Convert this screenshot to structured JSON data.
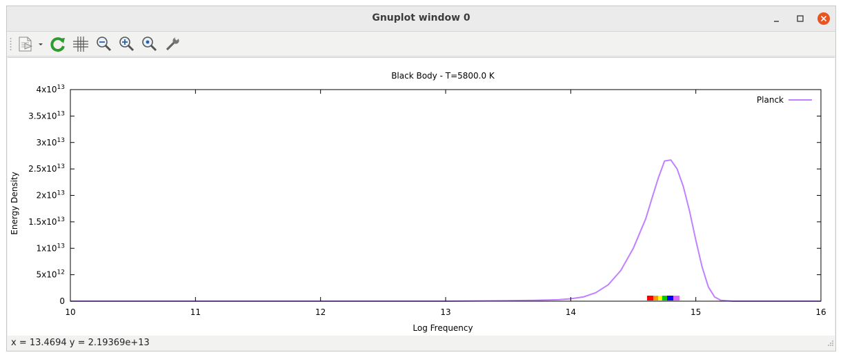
{
  "window": {
    "title": "Gnuplot window 0",
    "controls": [
      "minimize-icon",
      "maximize-icon",
      "close-icon"
    ],
    "close_color": "#e95420"
  },
  "toolbar": {
    "icons": [
      "copy-to-clipboard-icon",
      "dropdown-arrow-icon",
      "replot-icon",
      "grid-icon",
      "zoom-previous-icon",
      "zoom-next-icon",
      "unzoom-icon",
      "options-wrench-icon"
    ]
  },
  "chart_data": {
    "type": "line",
    "title": "Black Body - T=5800.0 K",
    "xlabel": "Log Frequency",
    "ylabel": "Energy Density",
    "xlim": [
      10,
      16
    ],
    "ylim": [
      0,
      40000000000000
    ],
    "x_ticks": [
      10,
      11,
      12,
      13,
      14,
      15,
      16
    ],
    "x_tick_labels": [
      "10",
      "11",
      "12",
      "13",
      "14",
      "15",
      "16"
    ],
    "y_ticks": [
      0,
      5000000000000,
      10000000000000,
      15000000000000,
      20000000000000,
      25000000000000,
      30000000000000,
      35000000000000,
      40000000000000
    ],
    "y_tick_labels": [
      {
        "base": "0",
        "exp": ""
      },
      {
        "base": "5x10",
        "exp": "12"
      },
      {
        "base": "1x10",
        "exp": "13"
      },
      {
        "base": "1.5x10",
        "exp": "13"
      },
      {
        "base": "2x10",
        "exp": "13"
      },
      {
        "base": "2.5x10",
        "exp": "13"
      },
      {
        "base": "3x10",
        "exp": "13"
      },
      {
        "base": "3.5x10",
        "exp": "13"
      },
      {
        "base": "4x10",
        "exp": "13"
      }
    ],
    "legend_position": "top-right",
    "grid": false,
    "series": [
      {
        "name": "Planck",
        "color": "#c080ff",
        "points": [
          [
            10.0,
            0
          ],
          [
            11.0,
            0
          ],
          [
            12.0,
            0
          ],
          [
            13.0,
            0
          ],
          [
            13.5,
            100000000000
          ],
          [
            13.7,
            150000000000
          ],
          [
            13.9,
            280000000000
          ],
          [
            14.0,
            450000000000
          ],
          [
            14.1,
            800000000000
          ],
          [
            14.2,
            1600000000000
          ],
          [
            14.3,
            3100000000000
          ],
          [
            14.4,
            5800000000000
          ],
          [
            14.5,
            10000000000000
          ],
          [
            14.6,
            15600000000000
          ],
          [
            14.65,
            19500000000000
          ],
          [
            14.7,
            23300000000000
          ],
          [
            14.75,
            26500000000000
          ],
          [
            14.8,
            26700000000000
          ],
          [
            14.85,
            25000000000000
          ],
          [
            14.9,
            21700000000000
          ],
          [
            14.95,
            17000000000000
          ],
          [
            15.0,
            11500000000000
          ],
          [
            15.05,
            6500000000000
          ],
          [
            15.1,
            2700000000000
          ],
          [
            15.15,
            800000000000
          ],
          [
            15.2,
            150000000000
          ],
          [
            15.3,
            0
          ],
          [
            15.5,
            0
          ],
          [
            16.0,
            0
          ]
        ]
      }
    ],
    "visible_spectrum_bands": [
      {
        "x0": 14.61,
        "x1": 14.66,
        "color": "#ff0000"
      },
      {
        "x0": 14.66,
        "x1": 14.7,
        "color": "#ff9900"
      },
      {
        "x0": 14.7,
        "x1": 14.73,
        "color": "#ffff00"
      },
      {
        "x0": 14.73,
        "x1": 14.77,
        "color": "#00cc00"
      },
      {
        "x0": 14.77,
        "x1": 14.82,
        "color": "#0000ff"
      },
      {
        "x0": 14.82,
        "x1": 14.87,
        "color": "#dd66ff"
      }
    ]
  },
  "statusbar": {
    "text": "x = 13.4694 y = 2.19369e+13"
  }
}
